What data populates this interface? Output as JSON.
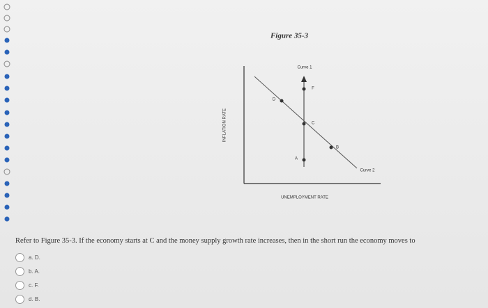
{
  "figure": {
    "title": "Figure 35-3",
    "y_axis_label": "INFLATION RATE",
    "x_axis_label": "UNEMPLOYMENT RATE",
    "curves": [
      "Curve 1",
      "Curve 2"
    ],
    "points": [
      "D",
      "F",
      "C",
      "B",
      "A"
    ]
  },
  "question": {
    "text": "Refer to Figure 35-3. If the economy starts at C and the money supply growth rate increases, then in the short run the economy moves to",
    "options": [
      "a. D.",
      "b. A.",
      "c. F.",
      "d. B."
    ]
  }
}
